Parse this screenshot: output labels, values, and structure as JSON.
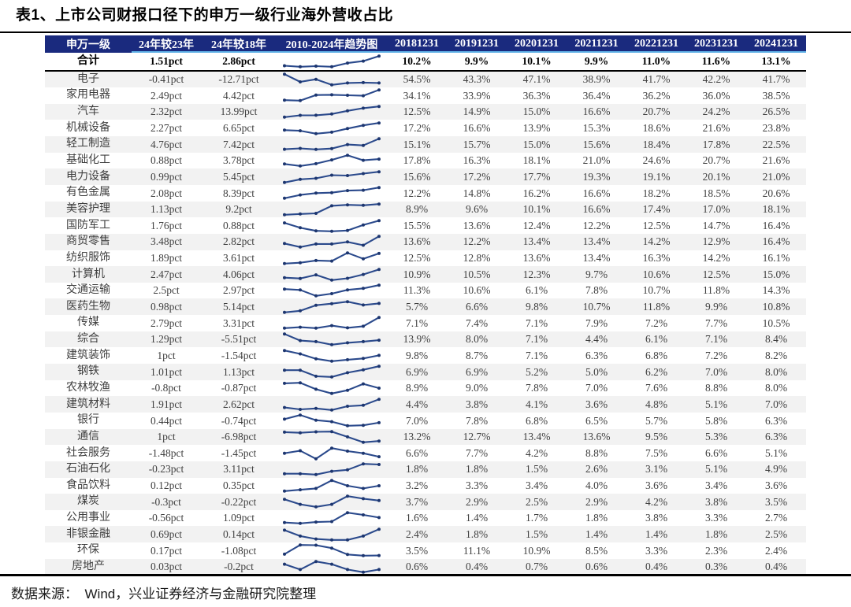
{
  "title": "表1、上市公司财报口径下的申万一级行业海外营收占比",
  "source_note": "数据来源：　Wind，兴业证券经济与金融研究院整理",
  "colors": {
    "header_bg": "#1a2a7e",
    "header_text": "#ffffff",
    "header_underline": "#5fb0e6",
    "sparkline": "#2b4a8c",
    "sparkline_dot": "#1d366f",
    "row_alt": "#f2f2f2",
    "cell_text": "#3f3f3f",
    "strong_text": "#000000"
  },
  "chart_data": {
    "type": "table",
    "title": "表1、上市公司财报口径下的申万一级行业海外营收占比",
    "columns": [
      "申万一级",
      "24年较23年",
      "24年较18年",
      "2010-2024年趋势图",
      "20181231",
      "20191231",
      "20201231",
      "20211231",
      "20221231",
      "20231231",
      "20241231"
    ],
    "year_unit": "%",
    "trend_column_type": "line-sparkline",
    "total_row": {
      "name": "合计",
      "chg_23": "1.51pct",
      "chg_18": "2.86pct",
      "years": [
        10.2,
        9.9,
        10.1,
        9.9,
        11.0,
        11.6,
        13.1
      ]
    },
    "rows": [
      {
        "name": "电子",
        "chg_23": "-0.41pct",
        "chg_18": "-12.71pct",
        "years": [
          54.5,
          43.3,
          47.1,
          38.9,
          41.7,
          42.2,
          41.7
        ]
      },
      {
        "name": "家用电器",
        "chg_23": "2.49pct",
        "chg_18": "4.42pct",
        "years": [
          34.1,
          33.9,
          36.3,
          36.4,
          36.2,
          36.0,
          38.5
        ]
      },
      {
        "name": "汽车",
        "chg_23": "2.32pct",
        "chg_18": "13.99pct",
        "years": [
          12.5,
          14.9,
          15.0,
          16.6,
          20.7,
          24.2,
          26.5
        ]
      },
      {
        "name": "机械设备",
        "chg_23": "2.27pct",
        "chg_18": "6.65pct",
        "years": [
          17.2,
          16.6,
          13.9,
          15.3,
          18.6,
          21.6,
          23.8
        ]
      },
      {
        "name": "轻工制造",
        "chg_23": "4.76pct",
        "chg_18": "7.42pct",
        "years": [
          15.1,
          15.7,
          15.0,
          15.6,
          18.4,
          17.8,
          22.5
        ]
      },
      {
        "name": "基础化工",
        "chg_23": "0.88pct",
        "chg_18": "3.78pct",
        "years": [
          17.8,
          16.3,
          18.1,
          21.0,
          24.6,
          20.7,
          21.6
        ]
      },
      {
        "name": "电力设备",
        "chg_23": "0.99pct",
        "chg_18": "5.45pct",
        "years": [
          15.6,
          17.2,
          17.7,
          19.3,
          19.1,
          20.1,
          21.0
        ]
      },
      {
        "name": "有色金属",
        "chg_23": "2.08pct",
        "chg_18": "8.39pct",
        "years": [
          12.2,
          14.8,
          16.2,
          16.6,
          18.2,
          18.5,
          20.6
        ]
      },
      {
        "name": "美容护理",
        "chg_23": "1.13pct",
        "chg_18": "9.2pct",
        "years": [
          8.9,
          9.6,
          10.1,
          16.6,
          17.4,
          17.0,
          18.1
        ]
      },
      {
        "name": "国防军工",
        "chg_23": "1.76pct",
        "chg_18": "0.88pct",
        "years": [
          15.5,
          13.6,
          12.4,
          12.2,
          12.5,
          14.7,
          16.4
        ]
      },
      {
        "name": "商贸零售",
        "chg_23": "3.48pct",
        "chg_18": "2.82pct",
        "years": [
          13.6,
          12.2,
          13.4,
          13.4,
          14.2,
          12.9,
          16.4
        ]
      },
      {
        "name": "纺织服饰",
        "chg_23": "1.89pct",
        "chg_18": "3.61pct",
        "years": [
          12.5,
          12.8,
          13.6,
          13.4,
          16.3,
          14.2,
          16.1
        ]
      },
      {
        "name": "计算机",
        "chg_23": "2.47pct",
        "chg_18": "4.06pct",
        "years": [
          10.9,
          10.5,
          12.3,
          9.7,
          10.6,
          12.5,
          15.0
        ]
      },
      {
        "name": "交通运输",
        "chg_23": "2.5pct",
        "chg_18": "2.97pct",
        "years": [
          11.3,
          10.6,
          6.1,
          7.8,
          10.7,
          11.8,
          14.3
        ]
      },
      {
        "name": "医药生物",
        "chg_23": "0.98pct",
        "chg_18": "5.14pct",
        "years": [
          5.7,
          6.6,
          9.8,
          10.7,
          11.8,
          9.9,
          10.8
        ]
      },
      {
        "name": "传媒",
        "chg_23": "2.79pct",
        "chg_18": "3.31pct",
        "years": [
          7.1,
          7.4,
          7.1,
          7.9,
          7.2,
          7.7,
          10.5
        ]
      },
      {
        "name": "综合",
        "chg_23": "1.29pct",
        "chg_18": "-5.51pct",
        "years": [
          13.9,
          8.0,
          7.1,
          4.4,
          6.1,
          7.1,
          8.4
        ]
      },
      {
        "name": "建筑装饰",
        "chg_23": "1pct",
        "chg_18": "-1.54pct",
        "years": [
          9.8,
          8.7,
          7.1,
          6.3,
          6.8,
          7.2,
          8.2
        ]
      },
      {
        "name": "钢铁",
        "chg_23": "1.01pct",
        "chg_18": "1.13pct",
        "years": [
          6.9,
          6.9,
          5.2,
          5.0,
          6.2,
          7.0,
          8.0
        ]
      },
      {
        "name": "农林牧渔",
        "chg_23": "-0.8pct",
        "chg_18": "-0.87pct",
        "years": [
          8.9,
          9.0,
          7.8,
          7.0,
          7.6,
          8.8,
          8.0
        ]
      },
      {
        "name": "建筑材料",
        "chg_23": "1.91pct",
        "chg_18": "2.62pct",
        "years": [
          4.4,
          3.8,
          4.1,
          3.6,
          4.8,
          5.1,
          7.0
        ]
      },
      {
        "name": "银行",
        "chg_23": "0.44pct",
        "chg_18": "-0.74pct",
        "years": [
          7.0,
          7.8,
          6.8,
          6.5,
          5.7,
          5.8,
          6.3
        ]
      },
      {
        "name": "通信",
        "chg_23": "1pct",
        "chg_18": "-6.98pct",
        "years": [
          13.2,
          12.7,
          13.4,
          13.6,
          9.5,
          5.3,
          6.3
        ]
      },
      {
        "name": "社会服务",
        "chg_23": "-1.48pct",
        "chg_18": "-1.45pct",
        "years": [
          6.6,
          7.7,
          4.2,
          8.8,
          7.5,
          6.6,
          5.1
        ]
      },
      {
        "name": "石油石化",
        "chg_23": "-0.23pct",
        "chg_18": "3.11pct",
        "years": [
          1.8,
          1.8,
          1.5,
          2.6,
          3.1,
          5.1,
          4.9
        ]
      },
      {
        "name": "食品饮料",
        "chg_23": "0.12pct",
        "chg_18": "0.35pct",
        "years": [
          3.2,
          3.3,
          3.4,
          4.0,
          3.6,
          3.4,
          3.6
        ]
      },
      {
        "name": "煤炭",
        "chg_23": "-0.3pct",
        "chg_18": "-0.22pct",
        "years": [
          3.7,
          2.9,
          2.5,
          2.9,
          4.2,
          3.8,
          3.5
        ]
      },
      {
        "name": "公用事业",
        "chg_23": "-0.56pct",
        "chg_18": "1.09pct",
        "years": [
          1.6,
          1.4,
          1.7,
          1.8,
          3.8,
          3.3,
          2.7
        ]
      },
      {
        "name": "非银金融",
        "chg_23": "0.69pct",
        "chg_18": "0.14pct",
        "years": [
          2.4,
          1.8,
          1.5,
          1.4,
          1.4,
          1.8,
          2.5
        ]
      },
      {
        "name": "环保",
        "chg_23": "0.17pct",
        "chg_18": "-1.08pct",
        "years": [
          3.5,
          11.1,
          10.9,
          8.5,
          3.3,
          2.3,
          2.4
        ]
      },
      {
        "name": "房地产",
        "chg_23": "0.03pct",
        "chg_18": "-0.2pct",
        "years": [
          0.6,
          0.4,
          0.7,
          0.6,
          0.4,
          0.3,
          0.4
        ]
      }
    ]
  }
}
